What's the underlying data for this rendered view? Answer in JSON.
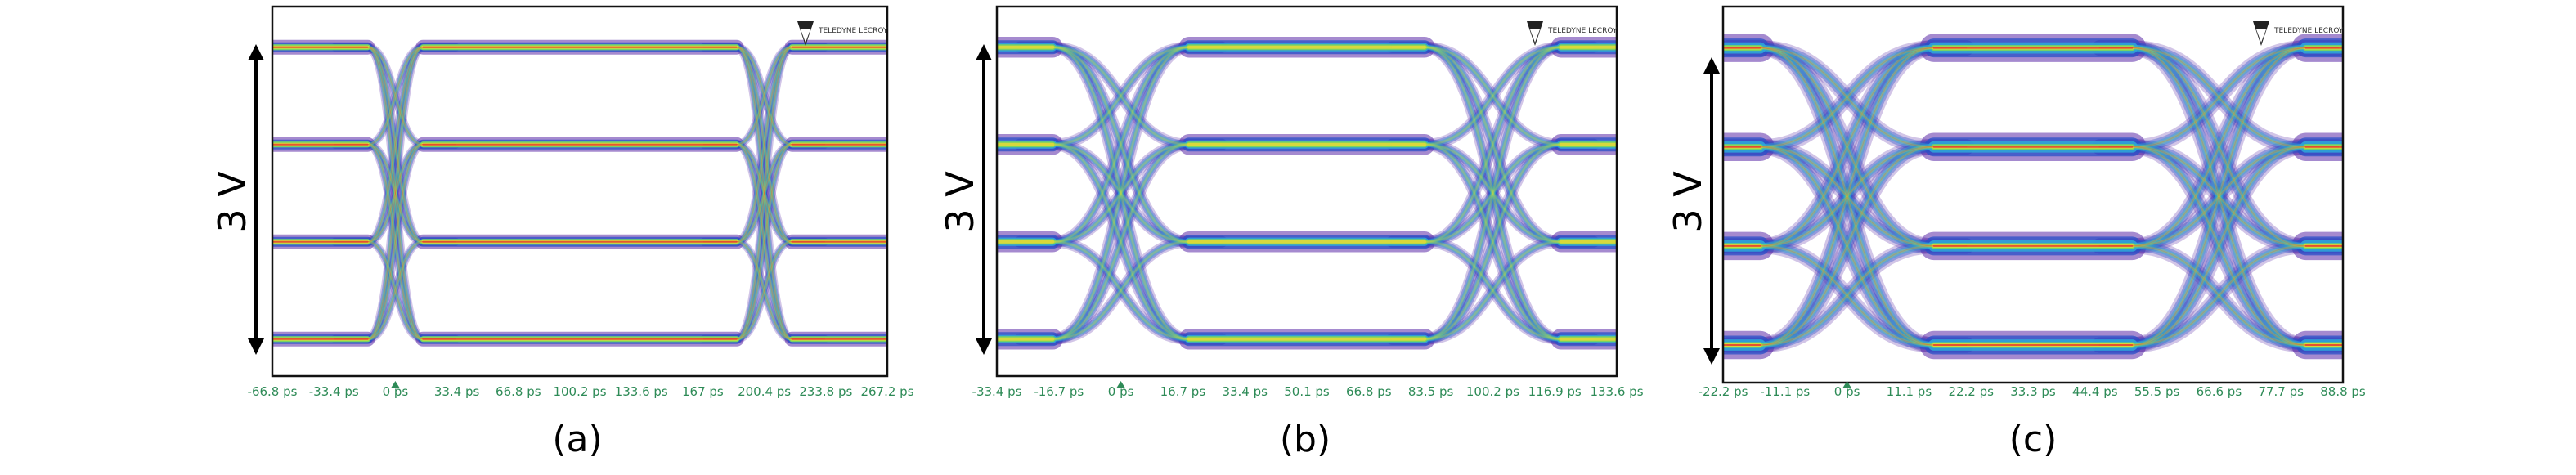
{
  "figure": {
    "colors": {
      "background": "#ffffff",
      "frame": "#111111",
      "tick_label": "#2e8b57",
      "density_low": "#5b2aa8",
      "density_mid1": "#2a4fc8",
      "density_mid2": "#2fa8d8",
      "density_mid3": "#7ed957",
      "density_high": "#e0d83a",
      "density_peak": "#e8412e"
    },
    "logo_text": "TELEDYNE LECROY"
  },
  "chart_data": [
    {
      "type": "heatmap",
      "panel_label": "(a)",
      "amplitude_label": "3 V",
      "x_ticks": [
        "-66.8 ps",
        "-33.4 ps",
        "0 ps",
        "33.4 ps",
        "66.8 ps",
        "100.2 ps",
        "133.6 ps",
        "167 ps",
        "200.4 ps",
        "233.8 ps",
        "267.2 ps"
      ],
      "trigger_tick": "0 ps",
      "levels": 4,
      "eye_openings": 3,
      "crossings": [
        0,
        1
      ]
    },
    {
      "type": "heatmap",
      "panel_label": "(b)",
      "amplitude_label": "3 V",
      "x_ticks": [
        "-33.4 ps",
        "-16.7 ps",
        "0 ps",
        "16.7 ps",
        "33.4 ps",
        "50.1 ps",
        "66.8 ps",
        "83.5 ps",
        "100.2 ps",
        "116.9 ps",
        "133.6 ps"
      ],
      "trigger_tick": "0 ps",
      "levels": 4,
      "eye_openings": 3,
      "crossings": [
        0,
        1
      ]
    },
    {
      "type": "heatmap",
      "panel_label": "(c)",
      "amplitude_label": "3 V",
      "x_ticks": [
        "-22.2 ps",
        "-11.1 ps",
        "0 ps",
        "11.1 ps",
        "22.2 ps",
        "33.3 ps",
        "44.4 ps",
        "55.5 ps",
        "66.6 ps",
        "77.7 ps",
        "88.8 ps"
      ],
      "trigger_tick": "0 ps",
      "levels": 4,
      "eye_openings": 3,
      "crossings": [
        0,
        1
      ]
    }
  ]
}
